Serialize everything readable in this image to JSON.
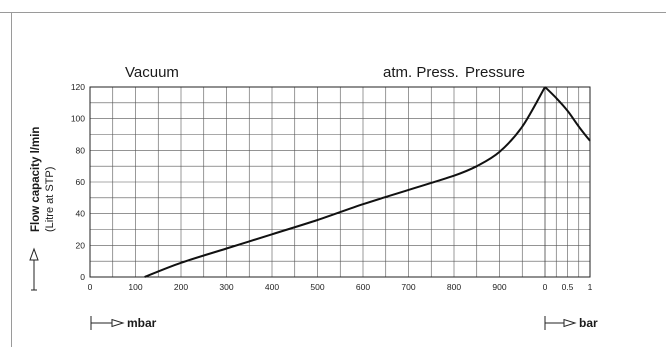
{
  "chart_data": {
    "type": "line",
    "region_labels": [
      "Vacuum",
      "atm. Press.",
      "Pressure"
    ],
    "ylabel": "Flow capacity l/min",
    "ylabel_sub": "(Litre at STP)",
    "ylim": [
      0,
      120
    ],
    "y_ticks": [
      "0",
      "20",
      "40",
      "60",
      "80",
      "100",
      "120"
    ],
    "vacuum_axis": {
      "unit": "mbar",
      "xlim": [
        0,
        1000
      ],
      "ticks": [
        "0",
        "100",
        "200",
        "300",
        "400",
        "500",
        "600",
        "700",
        "800",
        "900"
      ]
    },
    "pressure_axis": {
      "unit": "bar",
      "xlim": [
        0,
        1
      ],
      "ticks": [
        "0",
        "0.5",
        "1"
      ]
    },
    "grid": true,
    "series": [
      {
        "segment": "vacuum",
        "x": [
          120,
          200,
          300,
          400,
          500,
          600,
          700,
          800,
          850,
          900,
          950,
          1000
        ],
        "y": [
          0,
          9,
          18,
          27,
          36,
          46,
          55,
          64,
          70,
          79,
          95,
          120
        ]
      },
      {
        "segment": "pressure",
        "x": [
          0,
          0.25,
          0.5,
          0.75,
          1
        ],
        "y": [
          120,
          113,
          105,
          95,
          86
        ]
      }
    ]
  }
}
